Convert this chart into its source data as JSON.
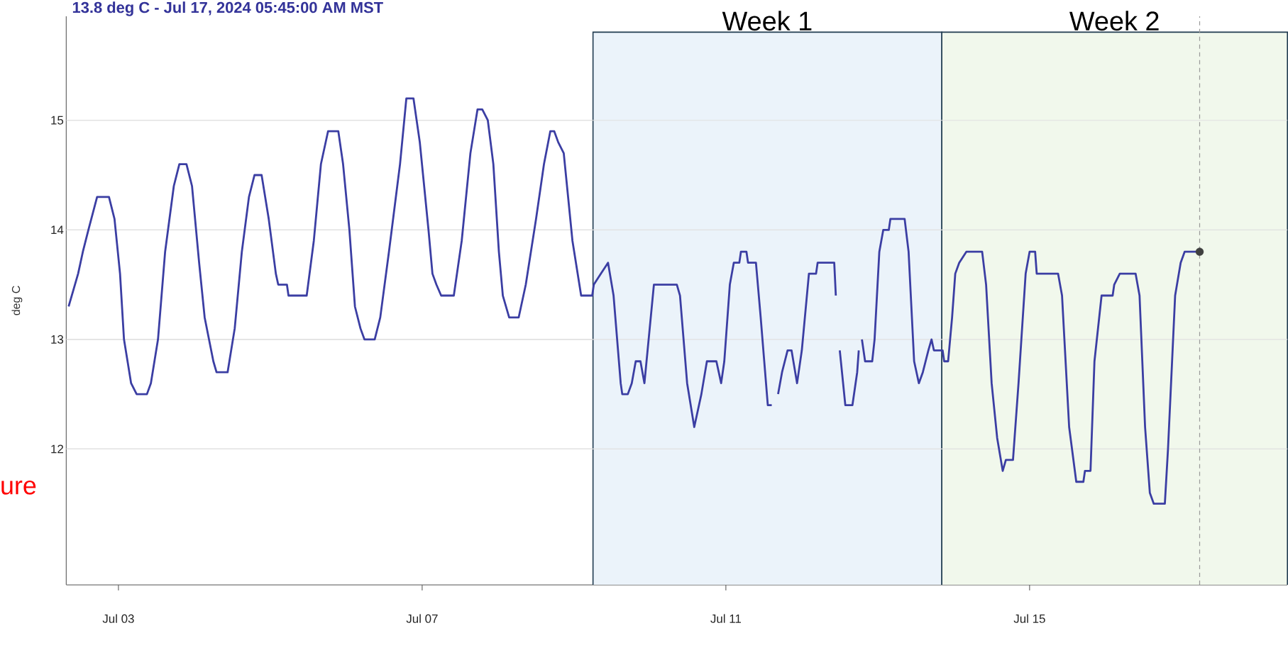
{
  "chart_data": {
    "type": "line",
    "title": "13.8 deg C - Jul 17, 2024 05:45:00 AM MST",
    "ylabel": "deg C",
    "annotations": [
      "ure"
    ],
    "xlim": [
      "2024-07-02T07:30",
      "2024-07-18T09:30"
    ],
    "ylim": [
      10.76,
      15.95
    ],
    "xticks": [
      {
        "value": "2024-07-03",
        "label": "Jul 03"
      },
      {
        "value": "2024-07-07",
        "label": "Jul 07"
      },
      {
        "value": "2024-07-11",
        "label": "Jul 11"
      },
      {
        "value": "2024-07-15",
        "label": "Jul 15"
      }
    ],
    "yticks": [
      12,
      13,
      14,
      15
    ],
    "grid": "y",
    "bands": [
      {
        "axis": "x",
        "from": "2024-07-09T06:00",
        "to": "2024-07-13T20:15",
        "label": "Week 1",
        "color": "#ebf3fa"
      },
      {
        "axis": "x",
        "from": "2024-07-13T20:15",
        "to": "2024-07-18T09:30",
        "label": "Week 2",
        "color": "#f1f8ec"
      }
    ],
    "ref_lines": [
      {
        "axis": "x",
        "value": "2024-07-17T05:45",
        "color": "#999999",
        "line_style": "dashed"
      }
    ],
    "series": [
      {
        "color": "#3b3ea3",
        "x": [
          "2024-07-02T08:15",
          "2024-07-02T09:15",
          "2024-07-02T11:15",
          "2024-07-02T12:45",
          "2024-07-02T14:30",
          "2024-07-02T17:15",
          "2024-07-02T21:00",
          "2024-07-02T22:45",
          "2024-07-03T00:30",
          "2024-07-03T01:45",
          "2024-07-03T04:00",
          "2024-07-03T05:45",
          "2024-07-03T09:00",
          "2024-07-03T10:15",
          "2024-07-03T12:30",
          "2024-07-03T14:45",
          "2024-07-03T17:30",
          "2024-07-03T19:15",
          "2024-07-03T21:30",
          "2024-07-03T23:15",
          "2024-07-04T01:30",
          "2024-07-04T03:15",
          "2024-07-04T06:00",
          "2024-07-04T07:00",
          "2024-07-04T10:30",
          "2024-07-04T12:45",
          "2024-07-04T15:00",
          "2024-07-04T17:15",
          "2024-07-04T19:00",
          "2024-07-04T21:15",
          "2024-07-04T23:30",
          "2024-07-05T01:45",
          "2024-07-05T02:30",
          "2024-07-05T05:15",
          "2024-07-05T05:45",
          "2024-07-05T11:30",
          "2024-07-05T13:45",
          "2024-07-05T16:00",
          "2024-07-05T18:15",
          "2024-07-05T21:30",
          "2024-07-05T23:00",
          "2024-07-06T01:00",
          "2024-07-06T02:45",
          "2024-07-06T04:30",
          "2024-07-06T05:45",
          "2024-07-06T09:00",
          "2024-07-06T10:45",
          "2024-07-06T13:30",
          "2024-07-06T17:00",
          "2024-07-06T19:00",
          "2024-07-06T21:15",
          "2024-07-06T23:15",
          "2024-07-07T02:00",
          "2024-07-07T03:15",
          "2024-07-07T04:30",
          "2024-07-07T06:00",
          "2024-07-07T10:00",
          "2024-07-07T12:30",
          "2024-07-07T15:15",
          "2024-07-07T17:30",
          "2024-07-07T19:00",
          "2024-07-07T20:45",
          "2024-07-07T22:30",
          "2024-07-08T00:15",
          "2024-07-08T01:30",
          "2024-07-08T03:30",
          "2024-07-08T06:30",
          "2024-07-08T08:45",
          "2024-07-08T12:00",
          "2024-07-08T14:30",
          "2024-07-08T16:30",
          "2024-07-08T17:45",
          "2024-07-08T19:00",
          "2024-07-08T20:45",
          "2024-07-08T23:30",
          "2024-07-09T02:15",
          "2024-07-09T05:45",
          "2024-07-09T06:15",
          "2024-07-09T08:30",
          "2024-07-09T10:45",
          "2024-07-09T12:30",
          "2024-07-09T14:45",
          "2024-07-09T15:15",
          "2024-07-09T17:00",
          "2024-07-09T18:15",
          "2024-07-09T19:30",
          "2024-07-09T21:00",
          "2024-07-09T22:15",
          "2024-07-09T23:15",
          "2024-07-10T01:15",
          "2024-07-10T08:30",
          "2024-07-10T09:30",
          "2024-07-10T11:45",
          "2024-07-10T14:00",
          "2024-07-10T16:15",
          "2024-07-10T18:00",
          "2024-07-10T21:00",
          "2024-07-10T22:30",
          "2024-07-10T23:30",
          "2024-07-11T01:15",
          "2024-07-11T02:30",
          "2024-07-11T04:15",
          "2024-07-11T04:45",
          "2024-07-11T06:30",
          "2024-07-11T07:00",
          "2024-07-11T09:30",
          "2024-07-11T11:00",
          "2024-07-11T13:15",
          "2024-07-11T14:30",
          "2024-07-11T15:30",
          "2024-07-11T16:30",
          "2024-07-11T17:45",
          "2024-07-11T19:30",
          "2024-07-11T20:45",
          "2024-07-11T22:30",
          "2024-07-12T00:00",
          "2024-07-12T02:15",
          "2024-07-12T04:30",
          "2024-07-12T05:00",
          "2024-07-12T10:15",
          "2024-07-12T10:45",
          "2024-07-12T11:15",
          "2024-07-12T12:00",
          "2024-07-12T13:45",
          "2024-07-12T16:00",
          "2024-07-12T17:30",
          "2024-07-12T18:00",
          "2024-07-12T18:30",
          "2024-07-12T19:00",
          "2024-07-12T20:00",
          "2024-07-12T22:15",
          "2024-07-12T23:00",
          "2024-07-13T00:30",
          "2024-07-13T01:45",
          "2024-07-13T03:30",
          "2024-07-13T04:00",
          "2024-07-13T08:30",
          "2024-07-13T09:45",
          "2024-07-13T11:30",
          "2024-07-13T13:00",
          "2024-07-13T14:15",
          "2024-07-13T16:00",
          "2024-07-13T17:00",
          "2024-07-13T17:45",
          "2024-07-13T20:30",
          "2024-07-13T21:00",
          "2024-07-13T22:15",
          "2024-07-13T23:30",
          "2024-07-14T00:30",
          "2024-07-14T01:45",
          "2024-07-14T04:00",
          "2024-07-14T09:00",
          "2024-07-14T10:15",
          "2024-07-14T12:00",
          "2024-07-14T13:45",
          "2024-07-14T15:30",
          "2024-07-14T16:30",
          "2024-07-14T18:45",
          "2024-07-14T20:30",
          "2024-07-14T22:45",
          "2024-07-15T00:00",
          "2024-07-15T01:45",
          "2024-07-15T02:15",
          "2024-07-15T09:00",
          "2024-07-15T10:15",
          "2024-07-15T12:30",
          "2024-07-15T14:45",
          "2024-07-15T17:00",
          "2024-07-15T17:30",
          "2024-07-15T19:15",
          "2024-07-15T20:30",
          "2024-07-15T22:45",
          "2024-07-16T02:15",
          "2024-07-16T02:45",
          "2024-07-16T04:30",
          "2024-07-16T09:30",
          "2024-07-16T10:45",
          "2024-07-16T12:30",
          "2024-07-16T14:00",
          "2024-07-16T15:15",
          "2024-07-16T18:45",
          "2024-07-16T19:45",
          "2024-07-16T22:00",
          "2024-07-16T23:45",
          "2024-07-17T01:00",
          "2024-07-17T05:45"
        ],
        "values": [
          13.3,
          13.4,
          13.6,
          13.8,
          14.0,
          14.3,
          14.3,
          14.1,
          13.6,
          13.0,
          12.6,
          12.5,
          12.5,
          12.6,
          13.0,
          13.8,
          14.4,
          14.6,
          14.6,
          14.4,
          13.7,
          13.2,
          12.8,
          12.7,
          12.7,
          13.1,
          13.8,
          14.3,
          14.5,
          14.5,
          14.1,
          13.6,
          13.5,
          13.5,
          13.4,
          13.4,
          13.9,
          14.6,
          14.9,
          14.9,
          14.6,
          14.0,
          13.3,
          13.1,
          13.0,
          13.0,
          13.2,
          13.8,
          14.6,
          15.2,
          15.2,
          14.8,
          14.0,
          13.6,
          13.5,
          13.4,
          13.4,
          13.9,
          14.7,
          15.1,
          15.1,
          15.0,
          14.6,
          13.8,
          13.4,
          13.2,
          13.2,
          13.5,
          14.1,
          14.6,
          14.9,
          14.9,
          14.8,
          14.7,
          13.9,
          13.4,
          13.4,
          13.5,
          13.6,
          13.7,
          13.4,
          12.6,
          12.5,
          12.5,
          12.6,
          12.8,
          12.8,
          12.6,
          12.9,
          13.5,
          13.5,
          13.4,
          12.6,
          12.2,
          12.5,
          12.8,
          12.8,
          12.6,
          12.8,
          13.5,
          13.7,
          13.7,
          13.8,
          13.8,
          13.7,
          13.7,
          13.2,
          12.4,
          12.4,
          null,
          12.5,
          12.7,
          12.9,
          12.9,
          12.6,
          12.9,
          13.6,
          13.6,
          13.7,
          13.7,
          13.4,
          null,
          12.9,
          12.4,
          12.4,
          12.7,
          12.9,
          null,
          13.0,
          12.8,
          12.8,
          13.0,
          13.8,
          14.0,
          14.0,
          14.1,
          14.1,
          13.8,
          12.8,
          12.6,
          12.7,
          12.9,
          13.0,
          12.9,
          12.9,
          12.8,
          12.8,
          13.2,
          13.6,
          13.7,
          13.8,
          13.8,
          13.5,
          12.6,
          12.1,
          11.8,
          11.9,
          11.9,
          12.6,
          13.6,
          13.8,
          13.8,
          13.6,
          13.6,
          13.4,
          12.2,
          11.7,
          11.7,
          11.8,
          11.8,
          12.8,
          13.4,
          13.4,
          13.5,
          13.6,
          13.6,
          13.4,
          12.2,
          11.6,
          11.5,
          11.5,
          12.0,
          13.4,
          13.7,
          13.8,
          13.8
        ]
      },
      {
        "type": "scatter",
        "marker": "circle",
        "color": "#404040",
        "x": [
          "2024-07-17T05:45"
        ],
        "values": [
          13.8
        ]
      }
    ]
  }
}
